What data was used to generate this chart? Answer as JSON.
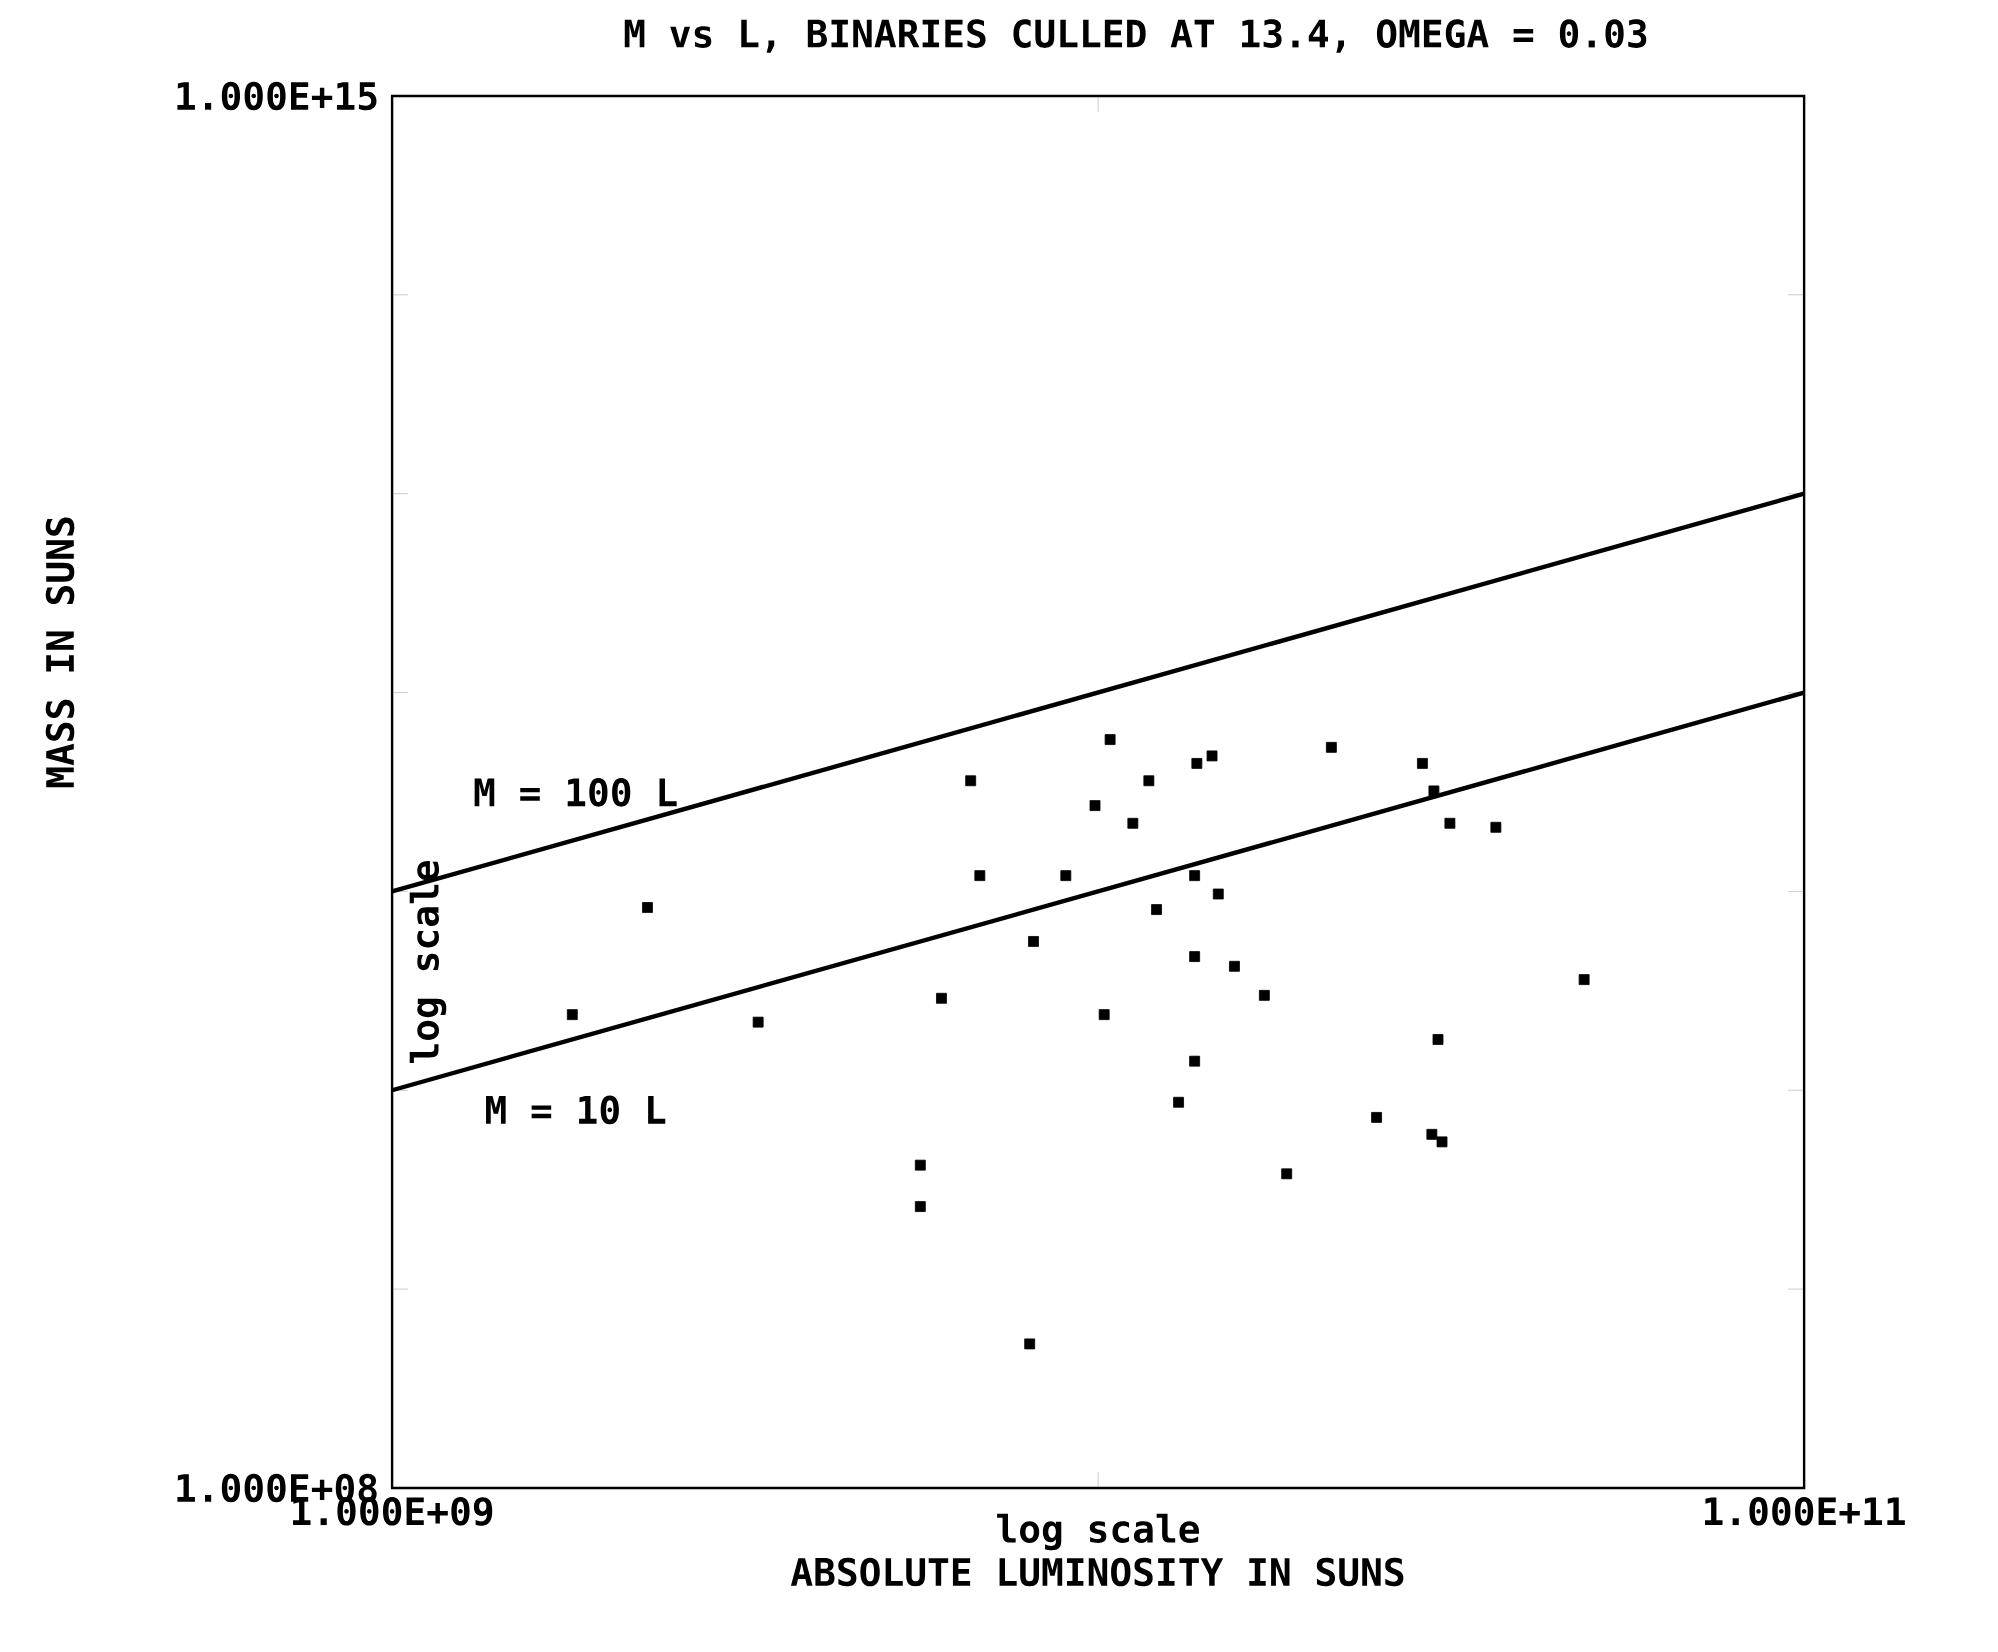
{
  "chart_data": {
    "type": "scatter",
    "title": "M vs L, BINARIES CULLED AT 13.4, OMEGA = 0.03",
    "xlabel": "ABSOLUTE LUMINOSITY IN SUNS",
    "ylabel": "MASS IN SUNS",
    "annotations": [
      "log scale",
      "log scale"
    ],
    "log": "xy",
    "grid": false,
    "legend": "left",
    "xlim": [
      1000000000.0,
      100000000000.0
    ],
    "ylim": [
      100000000.0,
      1000000000000000.0
    ],
    "xticks": [
      {
        "value": 1000000000.0,
        "label": "1.000E+09"
      },
      {
        "value": 10000000000.0,
        "label": null
      },
      {
        "value": 100000000000.0,
        "label": "1.000E+11"
      }
    ],
    "yticks": [
      {
        "value": 100000000.0,
        "label": "1.000E+08"
      },
      {
        "value": 1000000000.0,
        "label": null
      },
      {
        "value": 10000000000.0,
        "label": null
      },
      {
        "value": 100000000000.0,
        "label": null
      },
      {
        "value": 1000000000000.0,
        "label": null
      },
      {
        "value": 10000000000000.0,
        "label": null
      },
      {
        "value": 100000000000000.0,
        "label": null
      },
      {
        "value": 1000000000000000.0,
        "label": "1.000E+15"
      }
    ],
    "series": [
      {
        "marker": "square",
        "color": "#000000",
        "x": [
          1800000000.0,
          2300000000.0,
          3300000000.0,
          5600000000.0,
          5600000000.0,
          6000000000.0,
          6600000000.0,
          6800000000.0,
          8000000000.0,
          8100000000.0,
          9000000000.0,
          9900000000.0,
          10200000000.0,
          10400000000.0,
          11200000000.0,
          11800000000.0,
          12100000000.0,
          13000000000.0,
          13800000000.0,
          14500000000.0,
          13700000000.0,
          13700000000.0,
          13700000000.0,
          14800000000.0,
          15600000000.0,
          17200000000.0,
          18500000000.0,
          21400000000.0,
          24800000000.0,
          28800000000.0,
          29700000000.0,
          29900000000.0,
          30300000000.0,
          30700000000.0,
          31500000000.0,
          36600000000.0,
          48800000000.0
        ],
        "values": [
          24000000000.0,
          83000000000.0,
          22000000000.0,
          4200000000.0,
          2600000000.0,
          29000000000.0,
          360000000000.0,
          120000000000.0,
          530000000.0,
          56000000000.0,
          120000000000.0,
          270000000000.0,
          24000000000.0,
          580000000000.0,
          220000000000.0,
          360000000000.0,
          81000000000.0,
          8700000000.0,
          440000000000.0,
          480000000000.0,
          120000000000.0,
          47000000000.0,
          14000000000.0,
          97000000000.0,
          42000000000.0,
          30000000000.0,
          3800000000.0,
          530000000000.0,
          7300000000.0,
          440000000000.0,
          6000000000.0,
          320000000000.0,
          18000000000.0,
          5500000000.0,
          220000000000.0,
          210000000000.0,
          36000000000.0
        ]
      },
      {
        "type": "line",
        "name": "M = 100 L",
        "color": "#000000",
        "x": [
          1000000000.0,
          100000000000.0
        ],
        "values": [
          100000000000.0,
          10000000000000.0
        ]
      },
      {
        "type": "line",
        "name": "M = 10 L",
        "color": "#000000",
        "x": [
          1000000000.0,
          100000000000.0
        ],
        "values": [
          10000000000.0,
          1000000000000.0
        ]
      }
    ]
  }
}
